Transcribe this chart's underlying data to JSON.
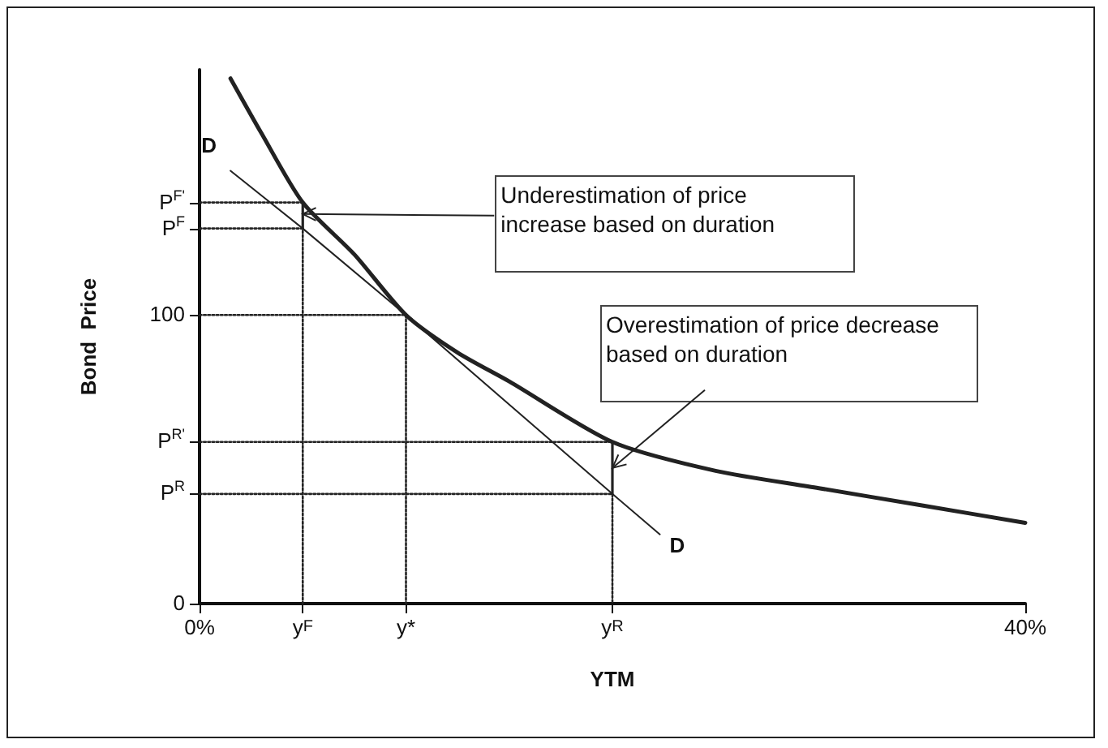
{
  "chart_data": {
    "type": "line",
    "xlabel": "YTM",
    "ylabel": "Bond  Price",
    "xlim": [
      0,
      40
    ],
    "ylim": [
      0,
      185
    ],
    "xticks": [
      {
        "value": 0,
        "label": "0%"
      },
      {
        "value": 5,
        "label": "y$^{F}$"
      },
      {
        "value": 10,
        "label": "y*"
      },
      {
        "value": 20,
        "label": "y$^{R}$"
      },
      {
        "value": 40,
        "label": "40%"
      }
    ],
    "yticks": [
      0,
      {
        "value": 38,
        "label": "P$^{R}$"
      },
      {
        "value": 56,
        "label": "P$^{R'}$"
      },
      100,
      {
        "value": 130,
        "label": "P$^{F}$"
      },
      {
        "value": 139,
        "label": "P$^{F'}$"
      }
    ],
    "grid": false,
    "legend": false,
    "series": [
      {
        "color": "#222222",
        "line_style": "solid",
        "x": [
          1.5,
          3,
          5,
          7.5,
          10,
          12.5,
          15,
          20,
          25,
          30,
          35,
          40
        ],
        "values": [
          182,
          163,
          139,
          121,
          100,
          87,
          77,
          56,
          46,
          40,
          34,
          28
        ]
      },
      {
        "name": "D",
        "color": "#222222",
        "line_style": "solid",
        "x": [
          1.5,
          5,
          10,
          20,
          22.3
        ],
        "values": [
          150,
          130,
          100,
          38,
          24
        ]
      },
      {
        "color": "#222222",
        "line_style": "dotted",
        "x": [
          0,
          5
        ],
        "values": [
          139,
          139
        ]
      },
      {
        "color": "#222222",
        "line_style": "dotted",
        "x": [
          0,
          5,
          5
        ],
        "values": [
          130,
          130,
          0
        ]
      },
      {
        "color": "#222222",
        "line_style": "dotted",
        "x": [
          0,
          10,
          10
        ],
        "values": [
          100,
          100,
          0
        ]
      },
      {
        "color": "#222222",
        "line_style": "dotted",
        "x": [
          0,
          20
        ],
        "values": [
          56,
          56
        ]
      },
      {
        "color": "#222222",
        "line_style": "dotted",
        "x": [
          0,
          20,
          20
        ],
        "values": [
          38,
          38,
          0
        ]
      },
      {
        "color": "#222222",
        "line_style": "solid",
        "x": [
          5,
          5
        ],
        "values": [
          130,
          139
        ]
      },
      {
        "color": "#222222",
        "line_style": "solid",
        "x": [
          20,
          20
        ],
        "values": [
          38,
          56
        ]
      }
    ],
    "annotations": [
      {
        "text": "Underestimation of price increase based on duration",
        "x": 5,
        "y": 135
      },
      {
        "text": "Overestimation of price decrease based on duration",
        "x": 20,
        "y": 47
      }
    ]
  }
}
